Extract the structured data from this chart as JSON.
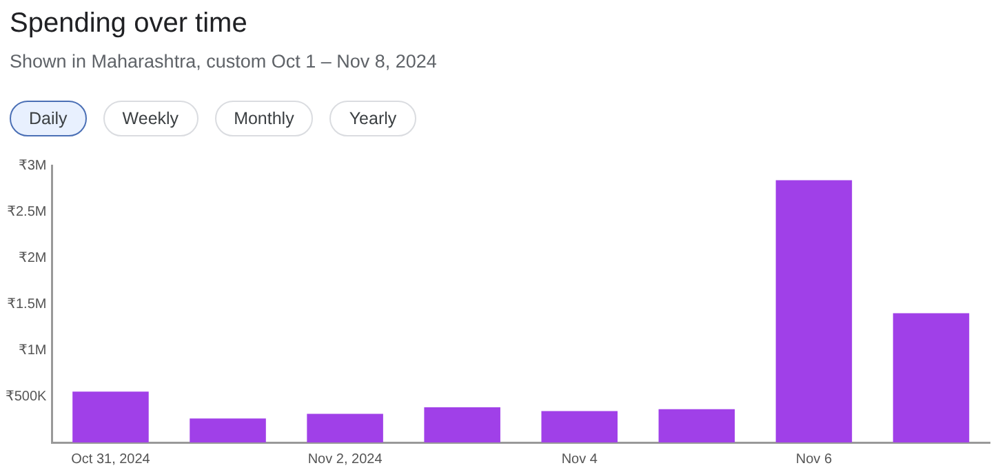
{
  "chart_data": {
    "type": "bar",
    "title": "Spending over time",
    "subtitle": "Shown in Maharashtra, custom Oct 1 – Nov 8, 2024",
    "annotations": [
      "Daily",
      "Weekly",
      "Monthly",
      "Yearly"
    ],
    "categories": [
      "Oct 31, 2024",
      null,
      "Nov 2, 2024",
      null,
      "Nov 4",
      null,
      "Nov 6",
      null
    ],
    "values": [
      550000,
      260000,
      310000,
      380000,
      340000,
      360000,
      2840000,
      1400000
    ],
    "color": "#a040e8",
    "ylim": [
      0,
      3000000
    ],
    "yticks": [
      {
        "value": 500000,
        "label": "₹500K"
      },
      {
        "value": 1000000,
        "label": "₹1M"
      },
      {
        "value": 1500000,
        "label": "₹1.5M"
      },
      {
        "value": 2000000,
        "label": "₹2M"
      },
      {
        "value": 2500000,
        "label": "₹2.5M"
      },
      {
        "value": 3000000,
        "label": "₹3M"
      }
    ],
    "grid": false,
    "legend": false
  }
}
